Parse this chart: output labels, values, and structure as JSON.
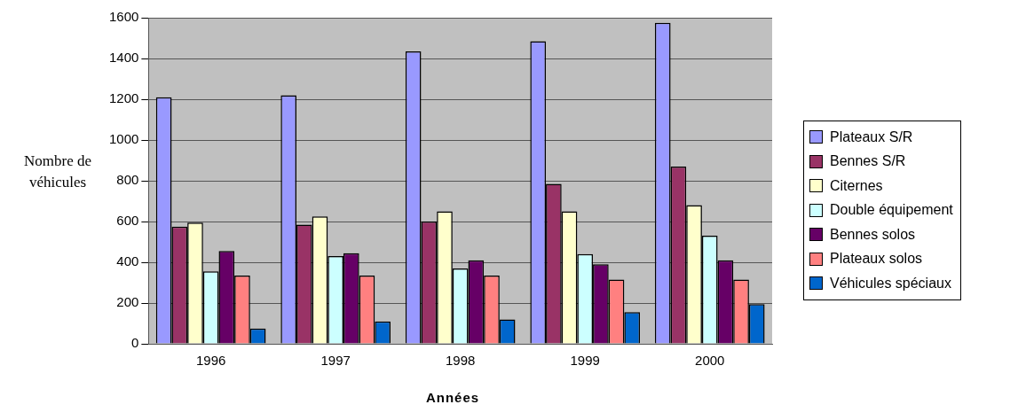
{
  "chart_data": {
    "type": "bar",
    "xlabel": "Années",
    "ylabel": "Nombre de véhicules",
    "categories": [
      "1996",
      "1997",
      "1998",
      "1999",
      "2000"
    ],
    "series": [
      {
        "name": "Plateaux S/R",
        "color": "#9999ff",
        "values": [
          1210,
          1220,
          1435,
          1485,
          1575
        ]
      },
      {
        "name": "Bennes S/R",
        "color": "#993366",
        "values": [
          575,
          585,
          600,
          785,
          870
        ]
      },
      {
        "name": "Citernes",
        "color": "#ffffcc",
        "values": [
          595,
          625,
          650,
          650,
          680
        ]
      },
      {
        "name": "Double équipement",
        "color": "#ccffff",
        "values": [
          355,
          430,
          370,
          440,
          530
        ]
      },
      {
        "name": "Bennes solos",
        "color": "#660066",
        "values": [
          455,
          445,
          410,
          390,
          410
        ]
      },
      {
        "name": "Plateaux solos",
        "color": "#ff8080",
        "values": [
          335,
          335,
          335,
          315,
          315
        ]
      },
      {
        "name": "Véhicules spéciaux",
        "color": "#0066cc",
        "values": [
          75,
          110,
          120,
          155,
          195
        ]
      }
    ],
    "ylim": [
      0,
      1600
    ],
    "yticks": [
      0,
      200,
      400,
      600,
      800,
      1000,
      1200,
      1400,
      1600
    ],
    "grid": "y",
    "legend": "right"
  }
}
